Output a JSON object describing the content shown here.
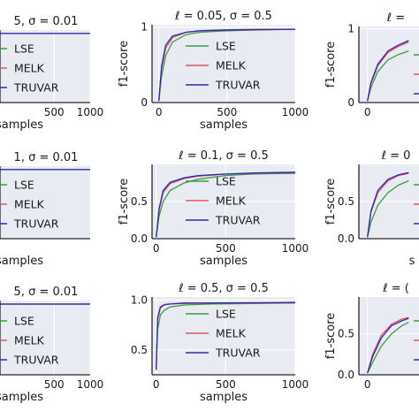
{
  "colors": {
    "LSE": "#3f9a3f",
    "MELK": "#e0525c",
    "TRUVAR": "#2b2bb0",
    "panel_bg": "#e9ebf3",
    "grid": "#ffffff"
  },
  "chart_data": [
    {
      "type": "line",
      "title": "5, σ = 0.01",
      "xlabel": "samples",
      "ylabel": "",
      "xticks": [
        "500",
        "1000"
      ],
      "yticks": [],
      "xlim": [
        -250,
        1000
      ],
      "ylim": [
        0,
        1.05
      ],
      "legend": "left",
      "series": [
        {
          "name": "LSE",
          "points": [
            [
              -250,
              1.0
            ],
            [
              1000,
              1.0
            ]
          ]
        },
        {
          "name": "MELK",
          "points": [
            [
              -250,
              1.0
            ],
            [
              1000,
              1.0
            ]
          ]
        },
        {
          "name": "TRUVAR",
          "points": [
            [
              -250,
              1.0
            ],
            [
              1000,
              1.0
            ]
          ]
        }
      ]
    },
    {
      "type": "line",
      "title": "ℓ = 0.05, σ = 0.5",
      "xlabel": "samples",
      "ylabel": "f1-score",
      "xticks": [
        "0",
        "500",
        "1000"
      ],
      "yticks": [
        "0",
        "1"
      ],
      "xlim": [
        -50,
        1000
      ],
      "ylim": [
        0,
        1.03
      ],
      "legend": "center-right",
      "series": [
        {
          "name": "LSE",
          "points": [
            [
              0,
              0.02
            ],
            [
              20,
              0.35
            ],
            [
              50,
              0.62
            ],
            [
              100,
              0.8
            ],
            [
              200,
              0.9
            ],
            [
              300,
              0.93
            ],
            [
              500,
              0.95
            ],
            [
              700,
              0.96
            ],
            [
              1000,
              0.97
            ]
          ]
        },
        {
          "name": "MELK",
          "points": [
            [
              0,
              0.02
            ],
            [
              20,
              0.45
            ],
            [
              50,
              0.72
            ],
            [
              100,
              0.86
            ],
            [
              200,
              0.93
            ],
            [
              300,
              0.95
            ],
            [
              500,
              0.965
            ],
            [
              700,
              0.97
            ],
            [
              1000,
              0.97
            ]
          ]
        },
        {
          "name": "TRUVAR",
          "points": [
            [
              0,
              0.02
            ],
            [
              20,
              0.48
            ],
            [
              50,
              0.76
            ],
            [
              100,
              0.88
            ],
            [
              200,
              0.93
            ],
            [
              300,
              0.95
            ],
            [
              500,
              0.96
            ],
            [
              700,
              0.965
            ],
            [
              1000,
              0.97
            ]
          ]
        }
      ]
    },
    {
      "type": "line",
      "title": "ℓ =",
      "xlabel": "",
      "ylabel": "f1-score",
      "xticks": [
        "0"
      ],
      "yticks": [
        "0",
        "1"
      ],
      "xlim": [
        -50,
        300
      ],
      "ylim": [
        0,
        1.03
      ],
      "legend": "right",
      "series": [
        {
          "name": "LSE",
          "points": [
            [
              0,
              0.02
            ],
            [
              20,
              0.2
            ],
            [
              60,
              0.42
            ],
            [
              120,
              0.58
            ],
            [
              180,
              0.65
            ],
            [
              240,
              0.7
            ]
          ]
        },
        {
          "name": "MELK",
          "points": [
            [
              0,
              0.02
            ],
            [
              20,
              0.25
            ],
            [
              60,
              0.5
            ],
            [
              120,
              0.68
            ],
            [
              180,
              0.76
            ],
            [
              240,
              0.82
            ]
          ]
        },
        {
          "name": "TRUVAR",
          "points": [
            [
              0,
              0.02
            ],
            [
              20,
              0.27
            ],
            [
              60,
              0.52
            ],
            [
              120,
              0.7
            ],
            [
              180,
              0.78
            ],
            [
              240,
              0.84
            ]
          ]
        }
      ]
    },
    {
      "type": "line",
      "title": "1, σ = 0.01",
      "xlabel": "samples",
      "ylabel": "",
      "xticks": [],
      "yticks": [],
      "xlim": [
        -250,
        1000
      ],
      "ylim": [
        0,
        1.05
      ],
      "legend": "left",
      "series": [
        {
          "name": "LSE",
          "points": [
            [
              -250,
              1.0
            ],
            [
              1000,
              1.0
            ]
          ]
        },
        {
          "name": "MELK",
          "points": [
            [
              -250,
              1.0
            ],
            [
              1000,
              1.0
            ]
          ]
        },
        {
          "name": "TRUVAR",
          "points": [
            [
              -250,
              1.0
            ],
            [
              1000,
              1.0
            ]
          ]
        }
      ]
    },
    {
      "type": "line",
      "title": "ℓ = 0.1, σ = 0.5",
      "xlabel": "samples",
      "ylabel": "f1-score",
      "xticks": [
        "0",
        "500",
        "1000"
      ],
      "yticks": [
        "0.0",
        "0.5"
      ],
      "xlim": [
        -30,
        1000
      ],
      "ylim": [
        0,
        1.0
      ],
      "legend": "center-right",
      "series": [
        {
          "name": "LSE",
          "points": [
            [
              0,
              0.02
            ],
            [
              20,
              0.3
            ],
            [
              50,
              0.5
            ],
            [
              100,
              0.65
            ],
            [
              200,
              0.75
            ],
            [
              300,
              0.8
            ],
            [
              500,
              0.85
            ],
            [
              700,
              0.87
            ],
            [
              1000,
              0.88
            ]
          ]
        },
        {
          "name": "MELK",
          "points": [
            [
              0,
              0.02
            ],
            [
              20,
              0.38
            ],
            [
              50,
              0.62
            ],
            [
              100,
              0.74
            ],
            [
              200,
              0.81
            ],
            [
              300,
              0.84
            ],
            [
              500,
              0.87
            ],
            [
              700,
              0.88
            ],
            [
              1000,
              0.89
            ]
          ]
        },
        {
          "name": "TRUVAR",
          "points": [
            [
              0,
              0.02
            ],
            [
              20,
              0.4
            ],
            [
              50,
              0.65
            ],
            [
              100,
              0.76
            ],
            [
              200,
              0.82
            ],
            [
              300,
              0.85
            ],
            [
              500,
              0.87
            ],
            [
              700,
              0.885
            ],
            [
              1000,
              0.895
            ]
          ]
        }
      ]
    },
    {
      "type": "line",
      "title": "ℓ = 0",
      "xlabel": "s",
      "ylabel": "f1-score",
      "xticks": [],
      "yticks": [
        "0.0",
        "0.5"
      ],
      "xlim": [
        -50,
        300
      ],
      "ylim": [
        0,
        1.0
      ],
      "legend": "right",
      "series": [
        {
          "name": "LSE",
          "points": [
            [
              0,
              0.02
            ],
            [
              20,
              0.22
            ],
            [
              60,
              0.45
            ],
            [
              120,
              0.62
            ],
            [
              180,
              0.72
            ],
            [
              240,
              0.78
            ]
          ]
        },
        {
          "name": "MELK",
          "points": [
            [
              0,
              0.02
            ],
            [
              20,
              0.35
            ],
            [
              60,
              0.62
            ],
            [
              120,
              0.78
            ],
            [
              180,
              0.85
            ],
            [
              240,
              0.88
            ]
          ]
        },
        {
          "name": "TRUVAR",
          "points": [
            [
              0,
              0.02
            ],
            [
              20,
              0.37
            ],
            [
              60,
              0.65
            ],
            [
              120,
              0.8
            ],
            [
              180,
              0.86
            ],
            [
              240,
              0.89
            ]
          ]
        }
      ]
    },
    {
      "type": "line",
      "title": "5, σ = 0.01",
      "xlabel": "samples",
      "ylabel": "",
      "xticks": [
        "500",
        "1000"
      ],
      "yticks": [],
      "xlim": [
        -250,
        1000
      ],
      "ylim": [
        0,
        1.05
      ],
      "legend": "left",
      "series": [
        {
          "name": "LSE",
          "points": [
            [
              -250,
              1.0
            ],
            [
              1000,
              1.0
            ]
          ]
        },
        {
          "name": "MELK",
          "points": [
            [
              -250,
              1.0
            ],
            [
              1000,
              1.0
            ]
          ]
        },
        {
          "name": "TRUVAR",
          "points": [
            [
              -250,
              1.0
            ],
            [
              1000,
              1.0
            ]
          ]
        }
      ]
    },
    {
      "type": "line",
      "title": "ℓ = 0.5, σ = 0.5",
      "xlabel": "samples",
      "ylabel": "",
      "xticks": [
        "0",
        "500",
        "1000"
      ],
      "yticks": [
        "0.5",
        "1.0"
      ],
      "xlim": [
        -30,
        1000
      ],
      "ylim": [
        0.25,
        1.03
      ],
      "legend": "center-right",
      "series": [
        {
          "name": "LSE",
          "points": [
            [
              0,
              0.3
            ],
            [
              10,
              0.7
            ],
            [
              30,
              0.85
            ],
            [
              60,
              0.9
            ],
            [
              100,
              0.93
            ],
            [
              200,
              0.95
            ],
            [
              400,
              0.96
            ],
            [
              700,
              0.965
            ],
            [
              1000,
              0.97
            ]
          ]
        },
        {
          "name": "MELK",
          "points": [
            [
              0,
              0.3
            ],
            [
              10,
              0.8
            ],
            [
              30,
              0.92
            ],
            [
              60,
              0.95
            ],
            [
              100,
              0.96
            ],
            [
              200,
              0.965
            ],
            [
              400,
              0.97
            ],
            [
              700,
              0.97
            ],
            [
              1000,
              0.97
            ]
          ]
        },
        {
          "name": "TRUVAR",
          "points": [
            [
              0,
              0.3
            ],
            [
              10,
              0.82
            ],
            [
              30,
              0.93
            ],
            [
              60,
              0.955
            ],
            [
              100,
              0.96
            ],
            [
              200,
              0.97
            ],
            [
              400,
              0.97
            ],
            [
              700,
              0.972
            ],
            [
              1000,
              0.975
            ]
          ]
        }
      ]
    },
    {
      "type": "line",
      "title": "ℓ = (",
      "xlabel": "",
      "ylabel": "f1-score",
      "xticks": [
        "0"
      ],
      "yticks": [
        "0.0",
        "0.5"
      ],
      "xlim": [
        -50,
        300
      ],
      "ylim": [
        0,
        0.95
      ],
      "legend": "right",
      "series": [
        {
          "name": "LSE",
          "points": [
            [
              0,
              0.02
            ],
            [
              30,
              0.15
            ],
            [
              80,
              0.35
            ],
            [
              140,
              0.5
            ],
            [
              200,
              0.6
            ],
            [
              240,
              0.64
            ]
          ]
        },
        {
          "name": "MELK",
          "points": [
            [
              0,
              0.02
            ],
            [
              30,
              0.25
            ],
            [
              80,
              0.48
            ],
            [
              140,
              0.62
            ],
            [
              200,
              0.68
            ],
            [
              240,
              0.7
            ]
          ]
        },
        {
          "name": "TRUVAR",
          "points": [
            [
              0,
              0.02
            ],
            [
              30,
              0.22
            ],
            [
              80,
              0.45
            ],
            [
              140,
              0.6
            ],
            [
              200,
              0.66
            ],
            [
              240,
              0.69
            ]
          ]
        }
      ]
    }
  ],
  "legend_labels": [
    "LSE",
    "MELK",
    "TRUVAR"
  ]
}
